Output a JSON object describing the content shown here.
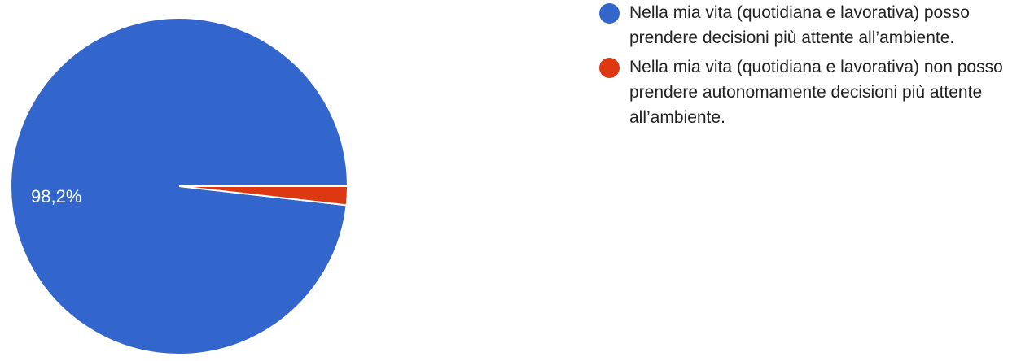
{
  "chart_data": {
    "type": "pie",
    "slices": [
      {
        "label": "Nella mia vita (quotidiana e lavorativa) posso prendere decisioni più attente all’ambiente.",
        "value": 98.2,
        "value_label": "98,2%",
        "color": "#3366cc"
      },
      {
        "label": "Nella mia vita (quotidiana e lavorativa) non posso prendere autonomamente decisioni più attente all’ambiente.",
        "value": 1.8,
        "value_label": "",
        "color": "#dc3912"
      }
    ],
    "legend_position": "right"
  }
}
